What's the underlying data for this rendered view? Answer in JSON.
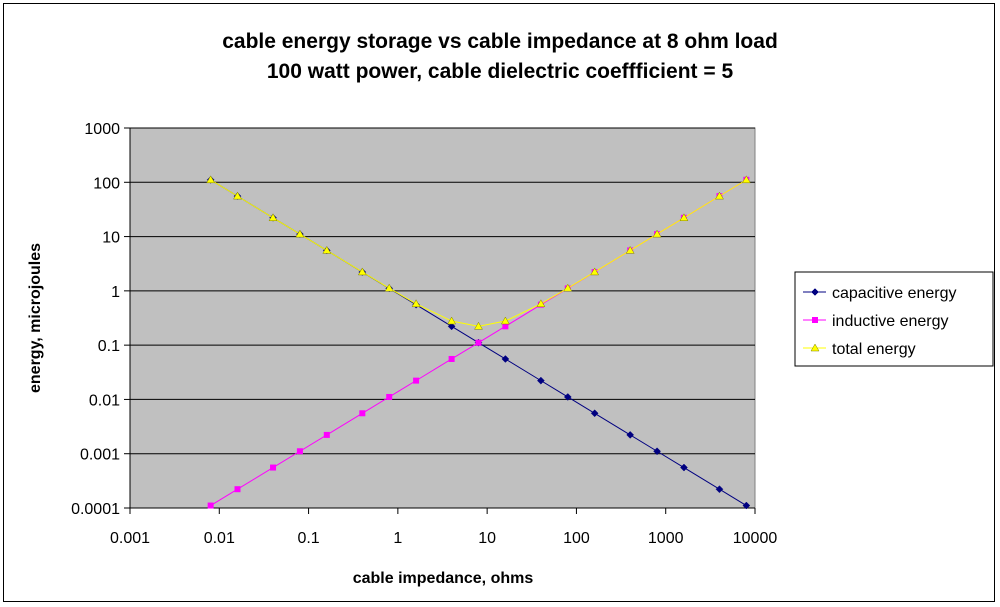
{
  "chart_data": {
    "type": "line",
    "title": "cable energy storage vs cable impedance at 8 ohm load",
    "subtitle": "100 watt power, cable dielectric coeffficient = 5",
    "xlabel": "cable impedance, ohms",
    "ylabel": "energy, microjoules",
    "x_scale": "log",
    "y_scale": "log",
    "xlim": [
      0.001,
      10000
    ],
    "ylim": [
      0.0001,
      1000
    ],
    "x_ticks": [
      "0.001",
      "0.01",
      "0.1",
      "1",
      "10",
      "100",
      "1000",
      "10000"
    ],
    "y_ticks": [
      "0.0001",
      "0.001",
      "0.01",
      "0.1",
      "1",
      "10",
      "100",
      "1000"
    ],
    "grid": "horizontal",
    "plot_background": "#c0c0c0",
    "legend_position": "right",
    "x": [
      0.008,
      0.016,
      0.04,
      0.08,
      0.16,
      0.4,
      0.8,
      1.6,
      4,
      8,
      16,
      40,
      80,
      160,
      400,
      800,
      1600,
      4000,
      8000
    ],
    "series": [
      {
        "name": "capacitive energy",
        "color": "#000080",
        "marker": "diamond",
        "values": [
          111,
          55.6,
          22.2,
          11.1,
          5.56,
          2.22,
          1.11,
          0.556,
          0.222,
          0.111,
          0.0556,
          0.0222,
          0.0111,
          0.00556,
          0.00222,
          0.00111,
          0.000556,
          0.000222,
          0.000111
        ]
      },
      {
        "name": "inductive energy",
        "color": "#ff00ff",
        "marker": "square",
        "values": [
          0.000111,
          0.000222,
          0.000556,
          0.00111,
          0.00222,
          0.00556,
          0.0111,
          0.0222,
          0.0556,
          0.111,
          0.222,
          0.556,
          1.11,
          2.22,
          5.56,
          11.1,
          22.2,
          55.6,
          111
        ]
      },
      {
        "name": "total energy",
        "color": "#ffff00",
        "marker": "triangle",
        "values": [
          111,
          55.6,
          22.2,
          11.1,
          5.56,
          2.23,
          1.12,
          0.578,
          0.278,
          0.222,
          0.278,
          0.578,
          1.12,
          2.23,
          5.56,
          11.1,
          22.2,
          55.6,
          111
        ]
      }
    ]
  }
}
